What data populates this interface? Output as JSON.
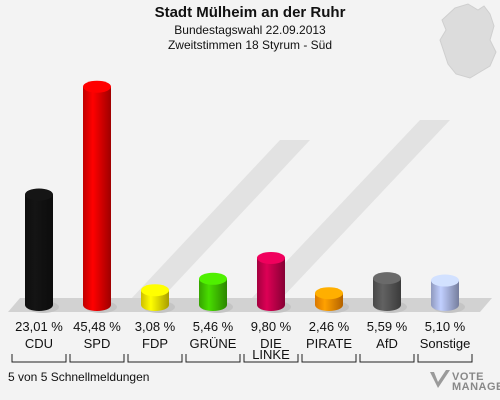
{
  "header": {
    "title": "Stadt Mülheim an der Ruhr",
    "subtitle1": "Bundestagswahl 22.09.2013",
    "subtitle2": "Zweitstimmen 18 Styrum - Süd"
  },
  "footer": {
    "status": "5 von 5 Schnellmeldungen"
  },
  "logo": {
    "line1": "VOTE",
    "line2": "MANAGER"
  },
  "chart_data": {
    "type": "bar",
    "categories": [
      "CDU",
      "SPD",
      "FDP",
      "GRÜNE",
      "DIE LINKE",
      "PIRATE",
      "AfD",
      "Sonstige"
    ],
    "values": [
      23.01,
      45.48,
      3.08,
      5.46,
      9.8,
      2.46,
      5.59,
      5.1
    ],
    "value_labels": [
      "23,01 %",
      "45,48 %",
      "3,08 %",
      "5,46 %",
      "9,80 %",
      "2,46 %",
      "5,59 %",
      "5,10 %"
    ],
    "colors": [
      "#111111",
      "#e20000",
      "#f2e000",
      "#3fc000",
      "#c0004a",
      "#ff8c00",
      "#555555",
      "#a8b4e0"
    ],
    "ylim": [
      0,
      50
    ],
    "grid": false,
    "legend": "none"
  }
}
